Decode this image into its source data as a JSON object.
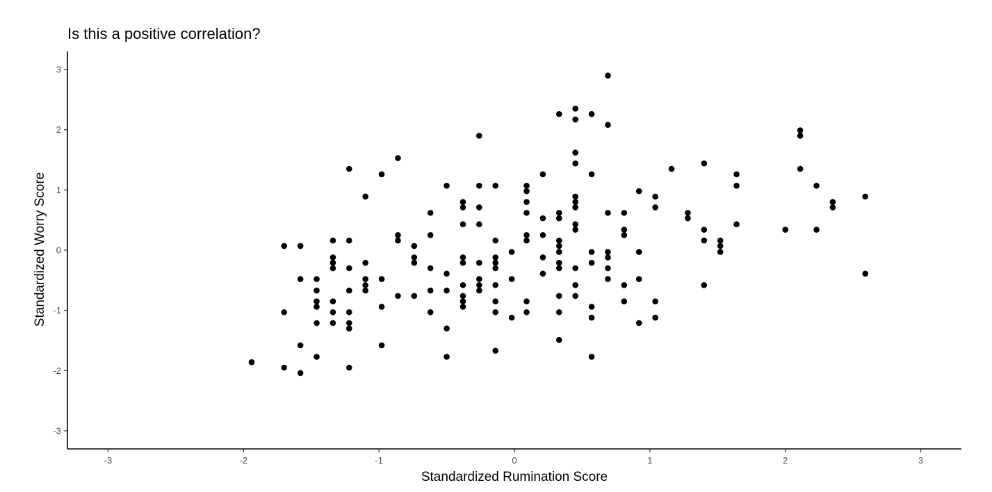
{
  "chart_data": {
    "type": "scatter",
    "title": "Is this a positive correlation?",
    "xlabel": "Standardized Rumination Score",
    "ylabel": "Standardized Worry Score",
    "xlim": [
      -3.3,
      3.3
    ],
    "ylim": [
      -3.3,
      3.3
    ],
    "xticks": [
      -3,
      -2,
      -1,
      0,
      1,
      2,
      3
    ],
    "yticks": [
      -3,
      -2,
      -1,
      0,
      1,
      2,
      3
    ],
    "grid": false,
    "legend": "none",
    "point_color": "#000000",
    "points": [
      [
        -1.94,
        -1.86
      ],
      [
        -1.7,
        0.07
      ],
      [
        -1.7,
        -1.03
      ],
      [
        -1.7,
        -1.95
      ],
      [
        -1.58,
        0.07
      ],
      [
        -1.58,
        -0.48
      ],
      [
        -1.58,
        -1.58
      ],
      [
        -1.58,
        -2.04
      ],
      [
        -1.46,
        -0.48
      ],
      [
        -1.46,
        -0.67
      ],
      [
        -1.46,
        -0.85
      ],
      [
        -1.46,
        -0.94
      ],
      [
        -1.46,
        -1.21
      ],
      [
        -1.46,
        -1.77
      ],
      [
        -1.34,
        0.16
      ],
      [
        -1.34,
        -0.12
      ],
      [
        -1.34,
        -0.21
      ],
      [
        -1.34,
        -0.3
      ],
      [
        -1.34,
        -0.85
      ],
      [
        -1.34,
        -1.03
      ],
      [
        -1.34,
        -1.21
      ],
      [
        -1.22,
        1.35
      ],
      [
        -1.22,
        0.16
      ],
      [
        -1.22,
        -0.3
      ],
      [
        -1.22,
        -0.67
      ],
      [
        -1.22,
        -1.03
      ],
      [
        -1.22,
        -1.21
      ],
      [
        -1.22,
        -1.3
      ],
      [
        -1.22,
        -1.95
      ],
      [
        -1.1,
        0.89
      ],
      [
        -1.1,
        -0.21
      ],
      [
        -1.1,
        -0.48
      ],
      [
        -1.1,
        -0.58
      ],
      [
        -1.1,
        -0.67
      ],
      [
        -0.98,
        1.26
      ],
      [
        -0.98,
        -0.48
      ],
      [
        -0.98,
        -0.94
      ],
      [
        -0.98,
        -1.58
      ],
      [
        -0.86,
        1.53
      ],
      [
        -0.86,
        0.25
      ],
      [
        -0.86,
        0.16
      ],
      [
        -0.86,
        -0.76
      ],
      [
        -0.74,
        0.07
      ],
      [
        -0.74,
        -0.12
      ],
      [
        -0.74,
        -0.21
      ],
      [
        -0.74,
        -0.76
      ],
      [
        -0.62,
        0.62
      ],
      [
        -0.62,
        0.25
      ],
      [
        -0.62,
        -0.3
      ],
      [
        -0.62,
        -0.67
      ],
      [
        -0.62,
        -1.03
      ],
      [
        -0.5,
        1.07
      ],
      [
        -0.5,
        -0.39
      ],
      [
        -0.5,
        -0.67
      ],
      [
        -0.5,
        -1.3
      ],
      [
        -0.5,
        -1.77
      ],
      [
        -0.38,
        0.8
      ],
      [
        -0.38,
        0.71
      ],
      [
        -0.38,
        0.43
      ],
      [
        -0.38,
        -0.12
      ],
      [
        -0.38,
        -0.21
      ],
      [
        -0.38,
        -0.58
      ],
      [
        -0.38,
        -0.76
      ],
      [
        -0.38,
        -0.85
      ],
      [
        -0.38,
        -0.94
      ],
      [
        -0.26,
        1.9
      ],
      [
        -0.26,
        1.07
      ],
      [
        -0.26,
        0.71
      ],
      [
        -0.26,
        0.43
      ],
      [
        -0.26,
        -0.21
      ],
      [
        -0.26,
        -0.48
      ],
      [
        -0.26,
        -0.58
      ],
      [
        -0.26,
        -0.67
      ],
      [
        -0.14,
        1.07
      ],
      [
        -0.14,
        0.16
      ],
      [
        -0.14,
        -0.12
      ],
      [
        -0.14,
        -0.21
      ],
      [
        -0.14,
        -0.3
      ],
      [
        -0.14,
        -0.58
      ],
      [
        -0.14,
        -0.85
      ],
      [
        -0.14,
        -1.03
      ],
      [
        -0.14,
        -1.67
      ],
      [
        -0.02,
        -0.03
      ],
      [
        -0.02,
        -0.48
      ],
      [
        -0.02,
        -1.12
      ],
      [
        0.09,
        1.07
      ],
      [
        0.09,
        0.98
      ],
      [
        0.09,
        0.8
      ],
      [
        0.09,
        0.62
      ],
      [
        0.09,
        0.25
      ],
      [
        0.09,
        0.16
      ],
      [
        0.09,
        -0.85
      ],
      [
        0.09,
        -1.03
      ],
      [
        0.21,
        1.26
      ],
      [
        0.21,
        0.53
      ],
      [
        0.21,
        0.25
      ],
      [
        0.21,
        -0.12
      ],
      [
        0.21,
        -0.39
      ],
      [
        0.33,
        2.26
      ],
      [
        0.33,
        0.62
      ],
      [
        0.33,
        0.53
      ],
      [
        0.33,
        0.16
      ],
      [
        0.33,
        0.07
      ],
      [
        0.33,
        -0.03
      ],
      [
        0.33,
        -0.21
      ],
      [
        0.33,
        -0.3
      ],
      [
        0.33,
        -0.76
      ],
      [
        0.33,
        -1.03
      ],
      [
        0.33,
        -1.49
      ],
      [
        0.45,
        2.35
      ],
      [
        0.45,
        2.17
      ],
      [
        0.45,
        1.62
      ],
      [
        0.45,
        1.44
      ],
      [
        0.45,
        0.89
      ],
      [
        0.45,
        0.8
      ],
      [
        0.45,
        0.71
      ],
      [
        0.45,
        0.43
      ],
      [
        0.45,
        0.34
      ],
      [
        0.45,
        -0.3
      ],
      [
        0.45,
        -0.58
      ],
      [
        0.45,
        -0.76
      ],
      [
        0.57,
        2.26
      ],
      [
        0.57,
        1.26
      ],
      [
        0.57,
        -0.03
      ],
      [
        0.57,
        -0.21
      ],
      [
        0.57,
        -0.94
      ],
      [
        0.57,
        -1.12
      ],
      [
        0.57,
        -1.77
      ],
      [
        0.69,
        2.9
      ],
      [
        0.69,
        2.08
      ],
      [
        0.69,
        0.62
      ],
      [
        0.69,
        -0.03
      ],
      [
        0.69,
        -0.12
      ],
      [
        0.69,
        -0.3
      ],
      [
        0.69,
        -0.48
      ],
      [
        0.81,
        0.62
      ],
      [
        0.81,
        0.34
      ],
      [
        0.81,
        0.25
      ],
      [
        0.81,
        -0.58
      ],
      [
        0.81,
        -0.85
      ],
      [
        0.92,
        0.98
      ],
      [
        0.92,
        -0.03
      ],
      [
        0.92,
        -0.48
      ],
      [
        0.92,
        -1.21
      ],
      [
        1.04,
        0.89
      ],
      [
        1.04,
        0.71
      ],
      [
        1.04,
        -0.85
      ],
      [
        1.04,
        -1.12
      ],
      [
        1.16,
        1.35
      ],
      [
        1.28,
        0.62
      ],
      [
        1.28,
        0.53
      ],
      [
        1.4,
        1.44
      ],
      [
        1.4,
        0.34
      ],
      [
        1.4,
        0.16
      ],
      [
        1.4,
        -0.58
      ],
      [
        1.52,
        0.16
      ],
      [
        1.52,
        0.07
      ],
      [
        1.52,
        -0.03
      ],
      [
        1.64,
        1.26
      ],
      [
        1.64,
        1.07
      ],
      [
        1.64,
        0.43
      ],
      [
        2.0,
        0.34
      ],
      [
        2.11,
        1.99
      ],
      [
        2.11,
        1.9
      ],
      [
        2.11,
        1.35
      ],
      [
        2.23,
        1.07
      ],
      [
        2.23,
        0.34
      ],
      [
        2.35,
        0.8
      ],
      [
        2.35,
        0.71
      ],
      [
        2.59,
        0.89
      ],
      [
        2.59,
        -0.39
      ]
    ]
  }
}
